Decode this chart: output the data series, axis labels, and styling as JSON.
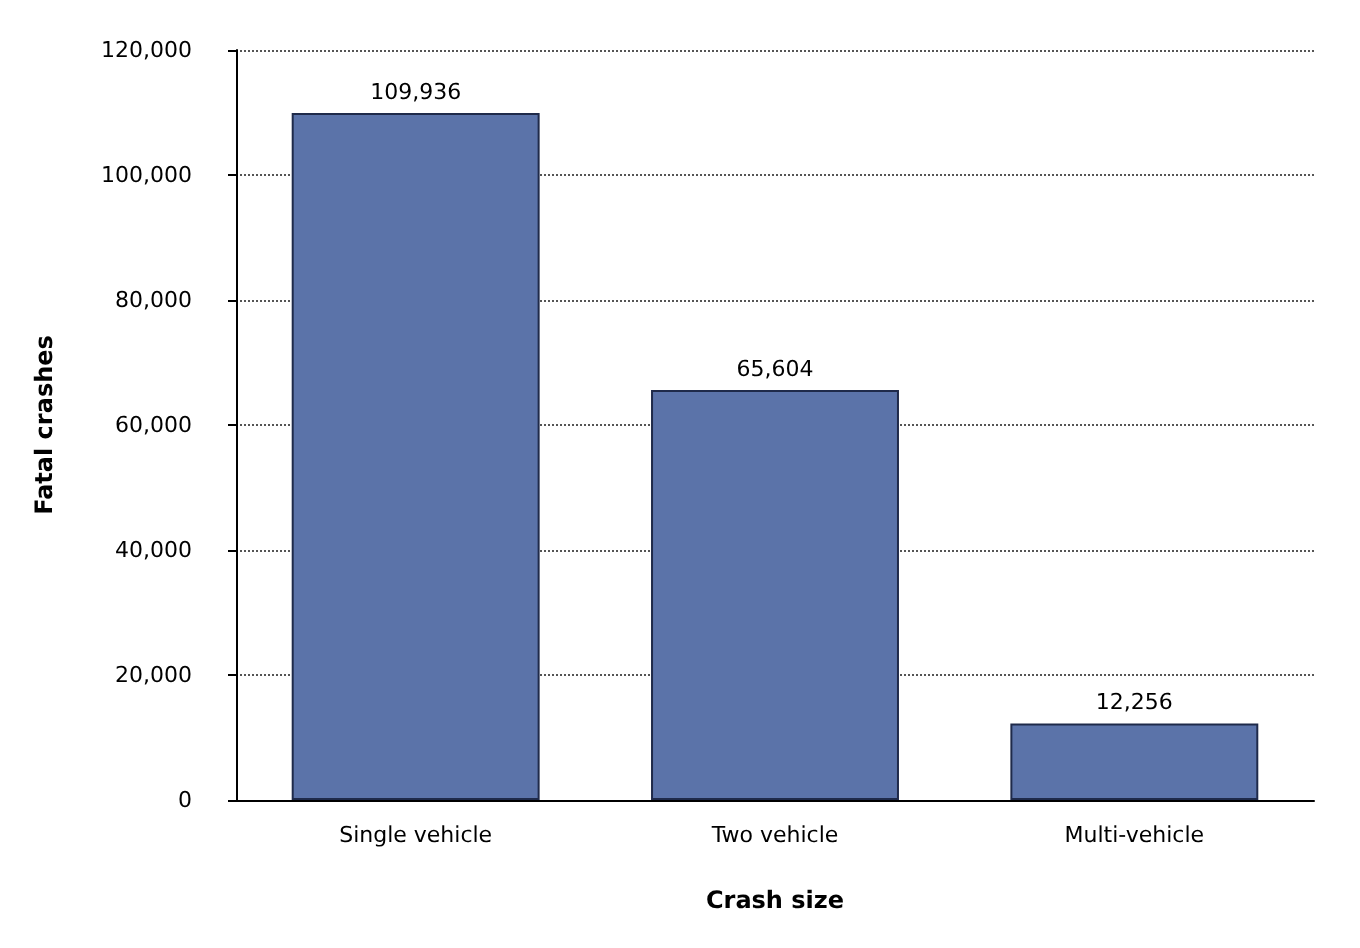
{
  "chart_data": {
    "type": "bar",
    "xlabel": "Crash size",
    "ylabel": "Fatal crashes",
    "categories": [
      "Single vehicle",
      "Two vehicle",
      "Multi-vehicle"
    ],
    "values": [
      109936,
      65604,
      12256
    ],
    "value_labels": [
      "109,936",
      "65,604",
      "12,256"
    ],
    "color": "#5b73a9",
    "ylim": [
      0,
      120000
    ],
    "yticks": [
      0,
      {
        "value": 20000,
        "label": "20,000"
      },
      {
        "value": 40000,
        "label": "40,000"
      },
      {
        "value": 60000,
        "label": "60,000"
      },
      {
        "value": 80000,
        "label": "80,000"
      },
      {
        "value": 100000,
        "label": "100,000"
      },
      {
        "value": 120000,
        "label": "120,000"
      }
    ],
    "grid": "y"
  }
}
